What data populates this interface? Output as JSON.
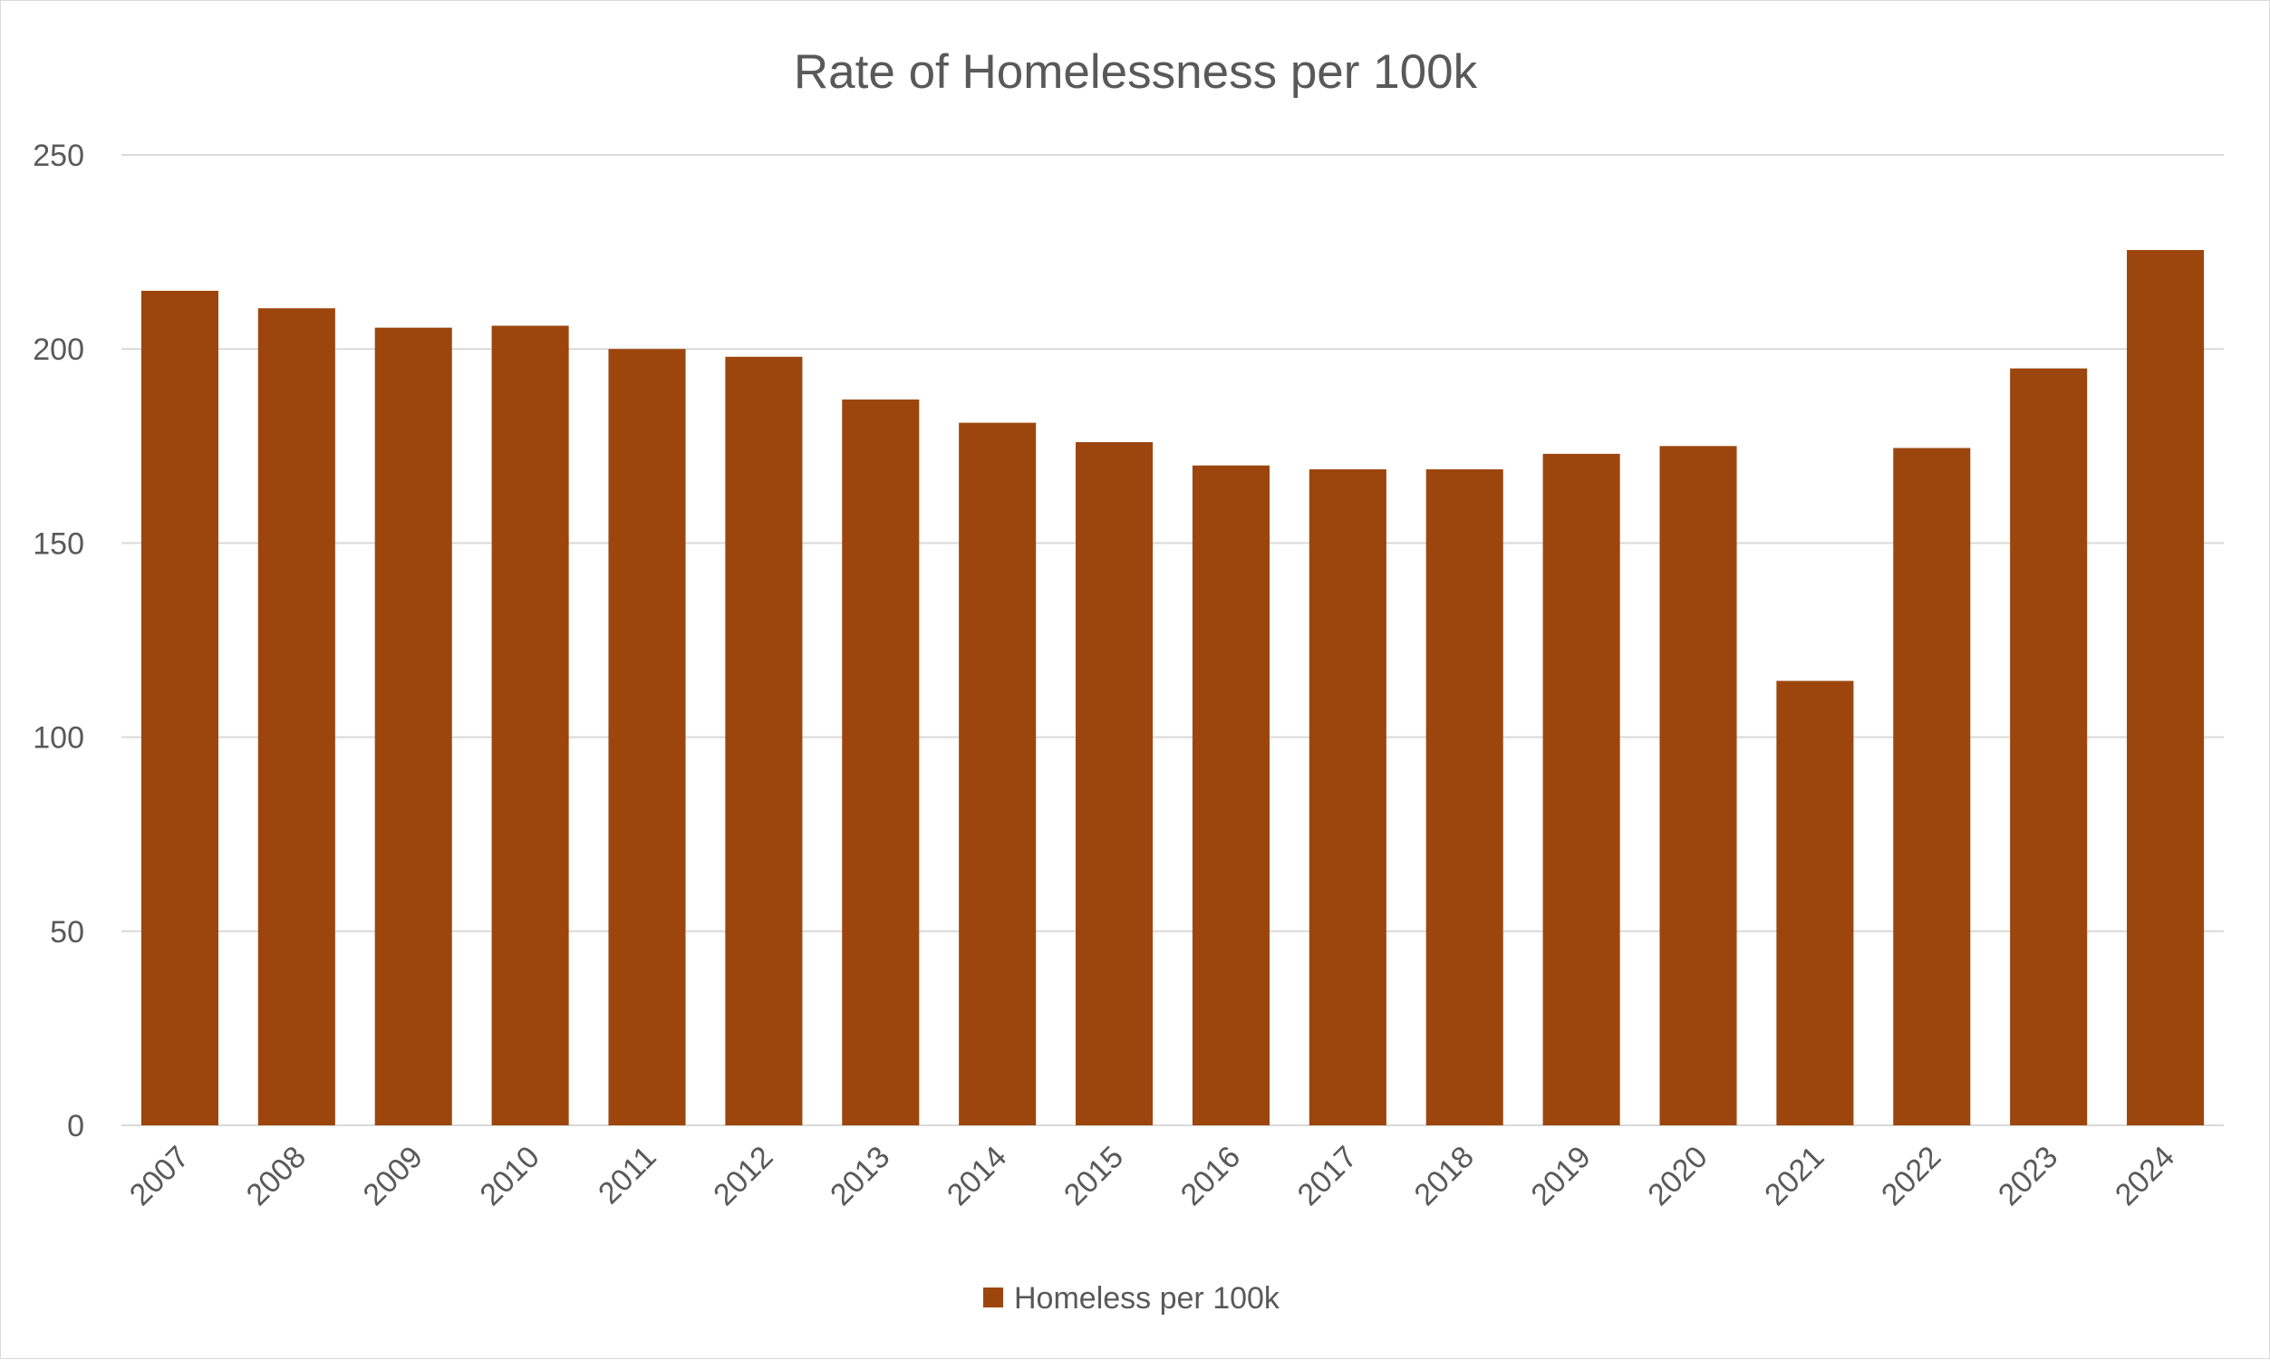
{
  "chart_data": {
    "type": "bar",
    "title": "Rate of Homelessness per 100k",
    "xlabel": "",
    "ylabel": "",
    "categories": [
      "2007",
      "2008",
      "2009",
      "2010",
      "2011",
      "2012",
      "2013",
      "2014",
      "2015",
      "2016",
      "2017",
      "2018",
      "2019",
      "2020",
      "2021",
      "2022",
      "2023",
      "2024"
    ],
    "series": [
      {
        "name": "Homeless per 100k",
        "color": "#9C460D",
        "values": [
          215,
          210.5,
          205.5,
          206,
          200,
          198,
          187,
          181,
          176,
          170,
          169,
          169,
          173,
          175,
          114.5,
          174.5,
          195,
          225.5
        ]
      }
    ],
    "ylim": [
      0,
      250
    ],
    "yticks": [
      0,
      50,
      100,
      150,
      200,
      250
    ],
    "grid": true,
    "legend_position": "bottom",
    "colors": {
      "bar": "#9C460D",
      "grid": "#d9d9d9",
      "text": "#595959"
    }
  }
}
